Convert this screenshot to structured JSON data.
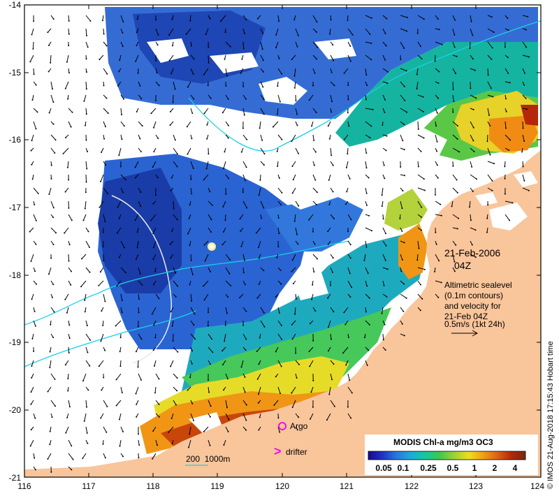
{
  "map": {
    "date_label": "21-Feb-2006",
    "time_label": "04Z",
    "altimetry_lines": [
      "Altimetric sealevel",
      "(0.1m contours)",
      "and velocity for",
      "21-Feb 04Z",
      "0.5m/s (1kt 24h)"
    ],
    "legend_argo": "Argo",
    "legend_drifter": "drifter",
    "drifter_symbol": ">",
    "scale_bar_label": "200  1000m",
    "colorbar_title": "MODIS Chl-a mg/m3 OC3",
    "colorbar_ticks": [
      "0.05",
      "0.1",
      "0.25",
      "0.5",
      "1",
      "2",
      "4"
    ],
    "credit": "© IMOS 21-Aug-2018 17:15:43 Hobart time",
    "colors": {
      "land": "#f9c59b",
      "ocean_nodata": "#ffffff",
      "contour": "#19d2e6",
      "isobath": "#e8e8e8",
      "argo": "#e614e6"
    }
  },
  "chart_data": {
    "type": "map",
    "x_ticks": [
      "116",
      "117",
      "118",
      "119",
      "120",
      "121",
      "122",
      "123",
      "124"
    ],
    "y_ticks": [
      "-14",
      "-15",
      "-16",
      "-17",
      "-18",
      "-19",
      "-20",
      "-21"
    ],
    "xlim": [
      116,
      124
    ],
    "ylim": [
      -21,
      -14
    ],
    "colorscale": [
      "#1a0a8c",
      "#1e32c8",
      "#2878dc",
      "#1eaadc",
      "#14c8a0",
      "#3cc850",
      "#a0d232",
      "#f0dc1e",
      "#f0a014",
      "#dc6414",
      "#b4280a",
      "#782814"
    ]
  }
}
